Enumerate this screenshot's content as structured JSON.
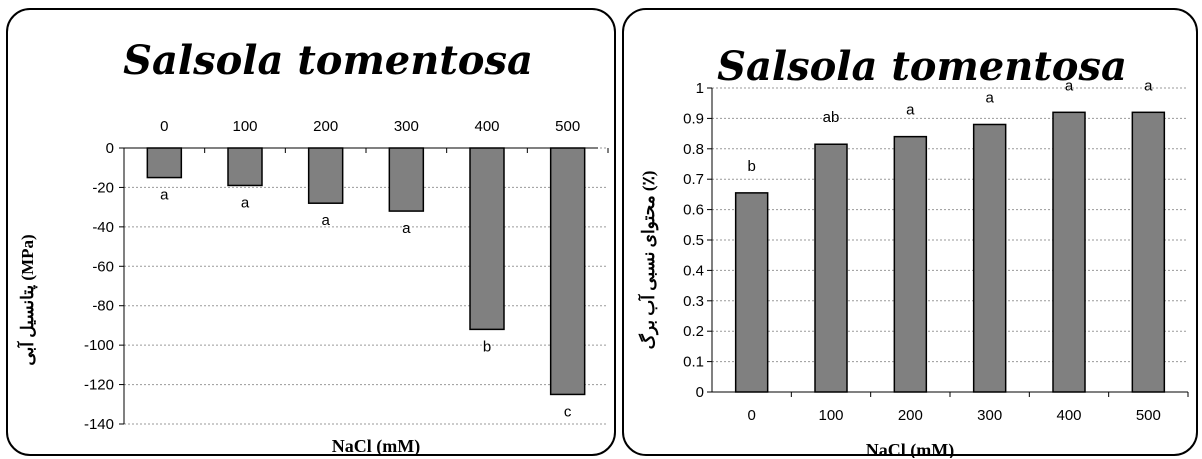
{
  "chart_data": [
    {
      "type": "bar",
      "title": "Salsola tomentosa",
      "xlabel": "NaCl (mM)",
      "ylabel": "پتانسیل آبی (MPa)",
      "categories": [
        "0",
        "100",
        "200",
        "300",
        "400",
        "500"
      ],
      "values": [
        -15,
        -19,
        -28,
        -32,
        -92,
        -125
      ],
      "significance": [
        "a",
        "a",
        "a",
        "a",
        "b",
        "c"
      ],
      "ylim": [
        -140,
        0
      ],
      "yticks": [
        0,
        -20,
        -40,
        -60,
        -80,
        -100,
        -120,
        -140
      ],
      "category_axis_position": "top",
      "grid": "horizontal-dotted",
      "bar_color": "#808080",
      "legend": "none"
    },
    {
      "type": "bar",
      "title": "Salsola tomentosa",
      "xlabel": "NaCl (mM)",
      "ylabel": "محتوای نسبی آب برگ (٪)",
      "categories": [
        "0",
        "100",
        "200",
        "300",
        "400",
        "500"
      ],
      "values": [
        0.655,
        0.815,
        0.84,
        0.88,
        0.92,
        0.92
      ],
      "significance": [
        "b",
        "ab",
        "a",
        "a",
        "a",
        "a"
      ],
      "ylim": [
        0,
        1
      ],
      "yticks": [
        0,
        0.1,
        0.2,
        0.3,
        0.4,
        0.5,
        0.6,
        0.7,
        0.8,
        0.9,
        1
      ],
      "category_axis_position": "bottom",
      "grid": "horizontal-dotted",
      "bar_color": "#808080",
      "legend": "none"
    }
  ]
}
